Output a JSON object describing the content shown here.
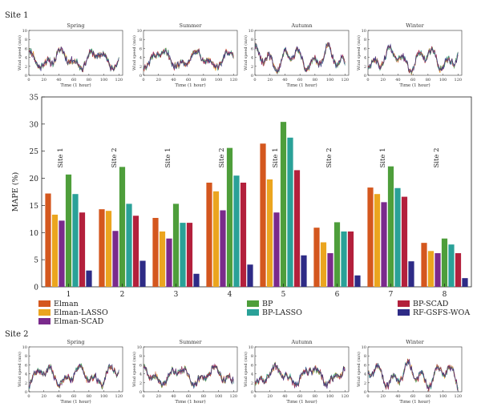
{
  "site_top_label": "Site 1",
  "site_bottom_label": "Site 2",
  "small_charts": {
    "seasons": [
      "Spring",
      "Summer",
      "Autumn",
      "Winter"
    ],
    "ylabel": "Wind speed (m/s)",
    "xlabel": "Time (1 hour)",
    "yticks": [
      "0",
      "2",
      "4",
      "6",
      "8",
      "10"
    ],
    "xticks": [
      "0",
      "20",
      "40",
      "60",
      "80",
      "100",
      "120"
    ],
    "xlim": [
      0,
      125
    ],
    "ylim": [
      0,
      10
    ]
  },
  "chart_data": {
    "type": "bar",
    "title": "",
    "xlabel": "",
    "ylabel": "MAPE (%)",
    "ylim": [
      0,
      35
    ],
    "yticks": [
      "0",
      "5",
      "10",
      "15",
      "20",
      "25",
      "30",
      "35"
    ],
    "categories": [
      "1",
      "2",
      "3",
      "4",
      "5",
      "6",
      "7",
      "8"
    ],
    "group_annotations": [
      "Site 1",
      "Site 2",
      "Site 1",
      "Site 2",
      "Site 1",
      "Site 2",
      "Site 1",
      "Site 2"
    ],
    "series": [
      {
        "name": "Elman",
        "color": "#d4571e",
        "values": [
          17.2,
          14.3,
          12.7,
          19.2,
          26.4,
          10.9,
          18.3,
          8.1
        ]
      },
      {
        "name": "Elman-LASSO",
        "color": "#eba51f",
        "values": [
          13.3,
          14.0,
          10.2,
          17.6,
          19.8,
          8.2,
          17.1,
          6.6
        ]
      },
      {
        "name": "Elman-SCAD",
        "color": "#7a2a8c",
        "values": [
          12.2,
          10.3,
          8.9,
          14.1,
          13.7,
          6.2,
          15.6,
          6.2
        ]
      },
      {
        "name": "BP",
        "color": "#4e9e3b",
        "values": [
          20.7,
          22.1,
          15.3,
          25.6,
          30.4,
          11.9,
          22.2,
          8.9
        ]
      },
      {
        "name": "BP-LASSO",
        "color": "#2aa198",
        "values": [
          17.1,
          15.3,
          11.8,
          20.5,
          27.5,
          10.2,
          18.2,
          7.8
        ]
      },
      {
        "name": "BP-SCAD",
        "color": "#b3203c",
        "values": [
          13.7,
          13.1,
          11.8,
          19.2,
          21.5,
          10.2,
          16.6,
          6.2
        ]
      },
      {
        "name": "RF-GSFS-WOA",
        "color": "#2e2b86",
        "values": [
          3.0,
          4.8,
          2.4,
          4.1,
          5.8,
          2.1,
          4.7,
          1.6
        ]
      }
    ],
    "legend_position": "bottom",
    "grid": false
  }
}
